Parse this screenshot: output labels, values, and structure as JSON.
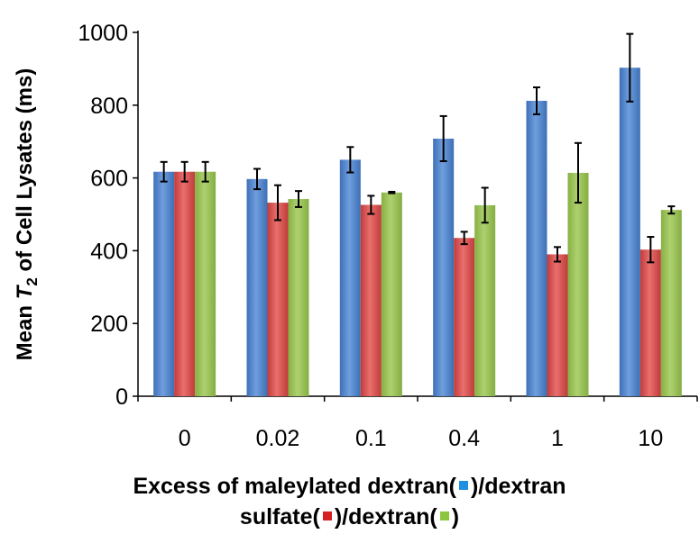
{
  "chart_data": {
    "type": "bar",
    "categories": [
      "0",
      "0.02",
      "0.1",
      "0.4",
      "1",
      "10"
    ],
    "series": [
      {
        "color": "#4a7fc7",
        "values": [
          617,
          597,
          650,
          708,
          812,
          903
        ],
        "errors": [
          27,
          28,
          35,
          62,
          37,
          93
        ]
      },
      {
        "color": "#cf4b4a",
        "values": [
          617,
          532,
          526,
          435,
          390,
          403
        ],
        "errors": [
          27,
          48,
          25,
          17,
          20,
          35
        ]
      },
      {
        "color": "#93bd4f",
        "values": [
          617,
          542,
          560,
          525,
          614,
          512
        ],
        "errors": [
          27,
          22,
          2,
          48,
          82,
          10
        ]
      }
    ],
    "ylim": [
      0,
      1000
    ],
    "yticks": [
      0,
      200,
      400,
      600,
      800,
      1000
    ],
    "ylabel_parts": [
      "Mean ",
      "T",
      "2",
      " of Cell Lysates (ms)"
    ],
    "xlabel": {
      "part1": "Excess of maleylated dextran(",
      "part2": ")/dextran",
      "part3": "sulfate(",
      "part4": ")/dextran(",
      "part5": ")"
    },
    "grid": false,
    "legend": "none"
  }
}
